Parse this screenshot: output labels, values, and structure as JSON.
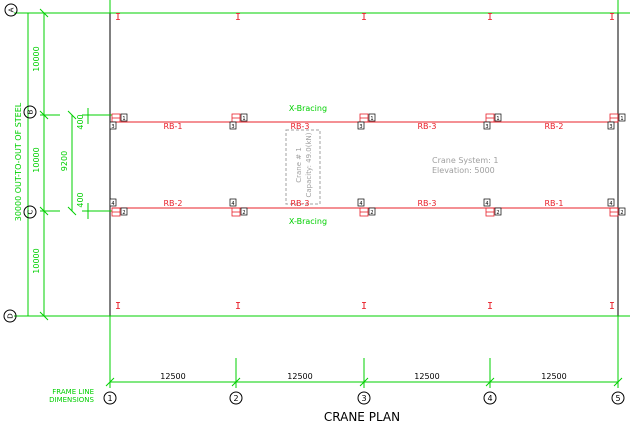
{
  "title": "CRANE PLAN",
  "frame_line_label": [
    "FRAME LINE",
    "DIMENSIONS"
  ],
  "overall_dimension": "30000 OUT-TO-OUT OF STEEL",
  "grid_letters": [
    "A",
    "B",
    "C",
    "D"
  ],
  "grid_numbers": [
    "1",
    "2",
    "3",
    "4",
    "5"
  ],
  "vertical_dims": {
    "top": "10000",
    "middle": "10000",
    "bottom": "10000",
    "inner": "9200",
    "offset_top": "400",
    "offset_bottom": "400"
  },
  "horizontal_dims": [
    "12500",
    "12500",
    "12500",
    "12500"
  ],
  "runway_beams_top": [
    "RB-1",
    "RB-3",
    "RB-3",
    "RB-2"
  ],
  "runway_beams_bottom": [
    "RB-2",
    "RB-3",
    "RB-3",
    "RB-1"
  ],
  "bracing_labels": [
    "X-Bracing",
    "X-Bracing"
  ],
  "crane_box": [
    "Crane # 1",
    "Capacity: 49.0(kN)"
  ],
  "crane_system": [
    "Crane System: 1",
    "Elevation: 5000"
  ],
  "column_marker": "I",
  "node_tags_top": [
    "1",
    "3"
  ],
  "node_tags_bottom": [
    "4",
    "2"
  ],
  "colors": {
    "green": "#00d000",
    "red": "#e8202a",
    "black": "#000000",
    "gray": "#a0a0a0"
  }
}
